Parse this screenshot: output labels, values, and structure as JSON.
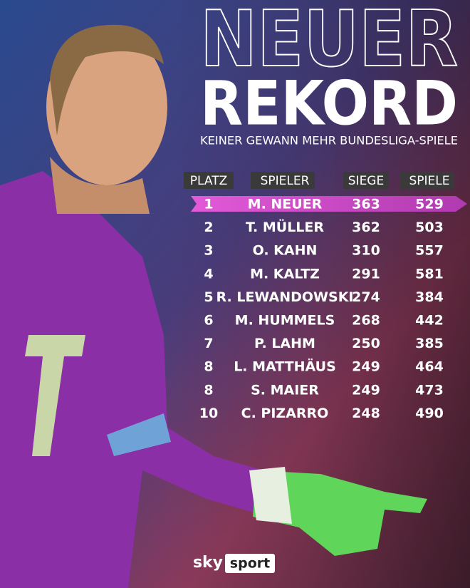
{
  "header": {
    "title_line1": "NEUER",
    "title_line2": "REKORD",
    "subtitle": "KEINER GEWANN MEHR BUNDESLIGA-SPIELE"
  },
  "table": {
    "columns": [
      "PLATZ",
      "SPIELER",
      "SIEGE",
      "SPIELE"
    ],
    "rows": [
      [
        1,
        "M. NEUER",
        363,
        529
      ],
      [
        2,
        "T. MÜLLER",
        362,
        503
      ],
      [
        3,
        "O. KAHN",
        310,
        557
      ],
      [
        4,
        "M. KALTZ",
        291,
        581
      ],
      [
        5,
        "R. LEWANDOWSKI",
        274,
        384
      ],
      [
        6,
        "M. HUMMELS",
        268,
        442
      ],
      [
        7,
        "P. LAHM",
        250,
        385
      ],
      [
        8,
        "L. MATTHÄUS",
        249,
        464
      ],
      [
        8,
        "S. MAIER",
        249,
        473
      ],
      [
        10,
        "C. PIZARRO",
        248,
        490
      ]
    ]
  },
  "logo": {
    "brand": "sky",
    "product": "sport"
  }
}
